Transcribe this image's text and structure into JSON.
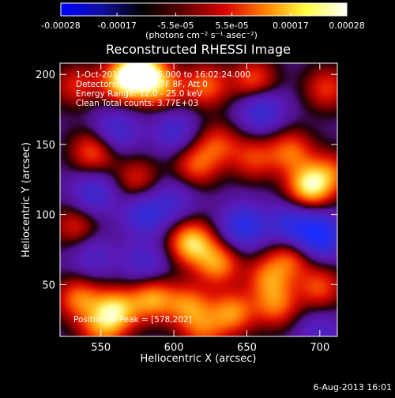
{
  "chart_data": {
    "type": "heatmap",
    "title": "Reconstructed RHESSI Image",
    "xlabel": "Heliocentric X (arcsec)",
    "ylabel": "Heliocentric Y (arcsec)",
    "xlim": [
      522,
      712
    ],
    "ylim": [
      13,
      208
    ],
    "x_ticks": [
      550,
      600,
      650,
      700
    ],
    "y_ticks": [
      50,
      100,
      150,
      200
    ],
    "colorbar": {
      "range": [
        -0.00028,
        0.00028
      ],
      "tick_values": [
        -0.00028,
        -0.00017,
        -5.5e-05,
        5.5e-05,
        0.00017,
        0.00028
      ],
      "tick_labels": [
        "-0.00028",
        "-0.00017",
        "-5.5e-05",
        "5.5e-05",
        "0.00017",
        "0.00028"
      ],
      "unit_label": "(photons cm⁻² s⁻¹ asec⁻²)",
      "colors": [
        "#0000ff",
        "#1010a0",
        "#000000",
        "#600000",
        "#d80000",
        "#ff8000",
        "#ffff40",
        "#ffffff"
      ]
    },
    "annotations": {
      "time_range": "1-Oct-2011 16:00:16.000 to 16:02:24.000",
      "detectors": "Detectors: 4F 5F 6F 7F 8F, Att 0",
      "energy": "Energy Range: 12.0 - 25.0 keV",
      "clean": "Clean    Total counts: 3.77E+03",
      "peak": "Position of Peak = [578,202]"
    },
    "peak_position": [
      578,
      202
    ],
    "sources": [
      {
        "x": 578,
        "y": 202,
        "v": 1.0
      },
      {
        "x": 565,
        "y": 195,
        "v": 0.75
      },
      {
        "x": 592,
        "y": 190,
        "v": 0.55
      },
      {
        "x": 533,
        "y": 192,
        "v": 0.4
      },
      {
        "x": 622,
        "y": 192,
        "v": 0.55
      },
      {
        "x": 655,
        "y": 195,
        "v": 0.55
      },
      {
        "x": 705,
        "y": 190,
        "v": 0.45
      },
      {
        "x": 545,
        "y": 145,
        "v": 0.55
      },
      {
        "x": 575,
        "y": 125,
        "v": 0.4
      },
      {
        "x": 615,
        "y": 135,
        "v": 0.5
      },
      {
        "x": 630,
        "y": 150,
        "v": 0.45
      },
      {
        "x": 655,
        "y": 140,
        "v": 0.45
      },
      {
        "x": 680,
        "y": 145,
        "v": 0.55
      },
      {
        "x": 693,
        "y": 120,
        "v": 0.9
      },
      {
        "x": 708,
        "y": 130,
        "v": 0.45
      },
      {
        "x": 533,
        "y": 92,
        "v": 0.4
      },
      {
        "x": 612,
        "y": 80,
        "v": 0.85
      },
      {
        "x": 630,
        "y": 65,
        "v": 0.65
      },
      {
        "x": 665,
        "y": 55,
        "v": 0.55
      },
      {
        "x": 680,
        "y": 70,
        "v": 0.5
      },
      {
        "x": 535,
        "y": 40,
        "v": 0.6
      },
      {
        "x": 560,
        "y": 32,
        "v": 0.8
      },
      {
        "x": 585,
        "y": 40,
        "v": 0.7
      },
      {
        "x": 610,
        "y": 35,
        "v": 0.6
      },
      {
        "x": 640,
        "y": 30,
        "v": 0.65
      },
      {
        "x": 670,
        "y": 35,
        "v": 0.55
      },
      {
        "x": 700,
        "y": 48,
        "v": 0.5
      },
      {
        "x": 550,
        "y": 18,
        "v": 0.5
      },
      {
        "x": 620,
        "y": 17,
        "v": 0.45
      },
      {
        "x": 660,
        "y": 175,
        "v": -0.6
      },
      {
        "x": 600,
        "y": 160,
        "v": -0.45
      },
      {
        "x": 560,
        "y": 160,
        "v": -0.5
      },
      {
        "x": 700,
        "y": 85,
        "v": -0.9
      },
      {
        "x": 680,
        "y": 92,
        "v": -0.6
      },
      {
        "x": 648,
        "y": 92,
        "v": -0.7
      },
      {
        "x": 580,
        "y": 100,
        "v": -0.55
      },
      {
        "x": 545,
        "y": 115,
        "v": -0.5
      },
      {
        "x": 600,
        "y": 110,
        "v": -0.35
      },
      {
        "x": 580,
        "y": 65,
        "v": -0.4
      },
      {
        "x": 545,
        "y": 70,
        "v": -0.35
      },
      {
        "x": 700,
        "y": 15,
        "v": -0.35
      }
    ]
  },
  "footer": {
    "date": "6-Aug-2013 16:01"
  }
}
